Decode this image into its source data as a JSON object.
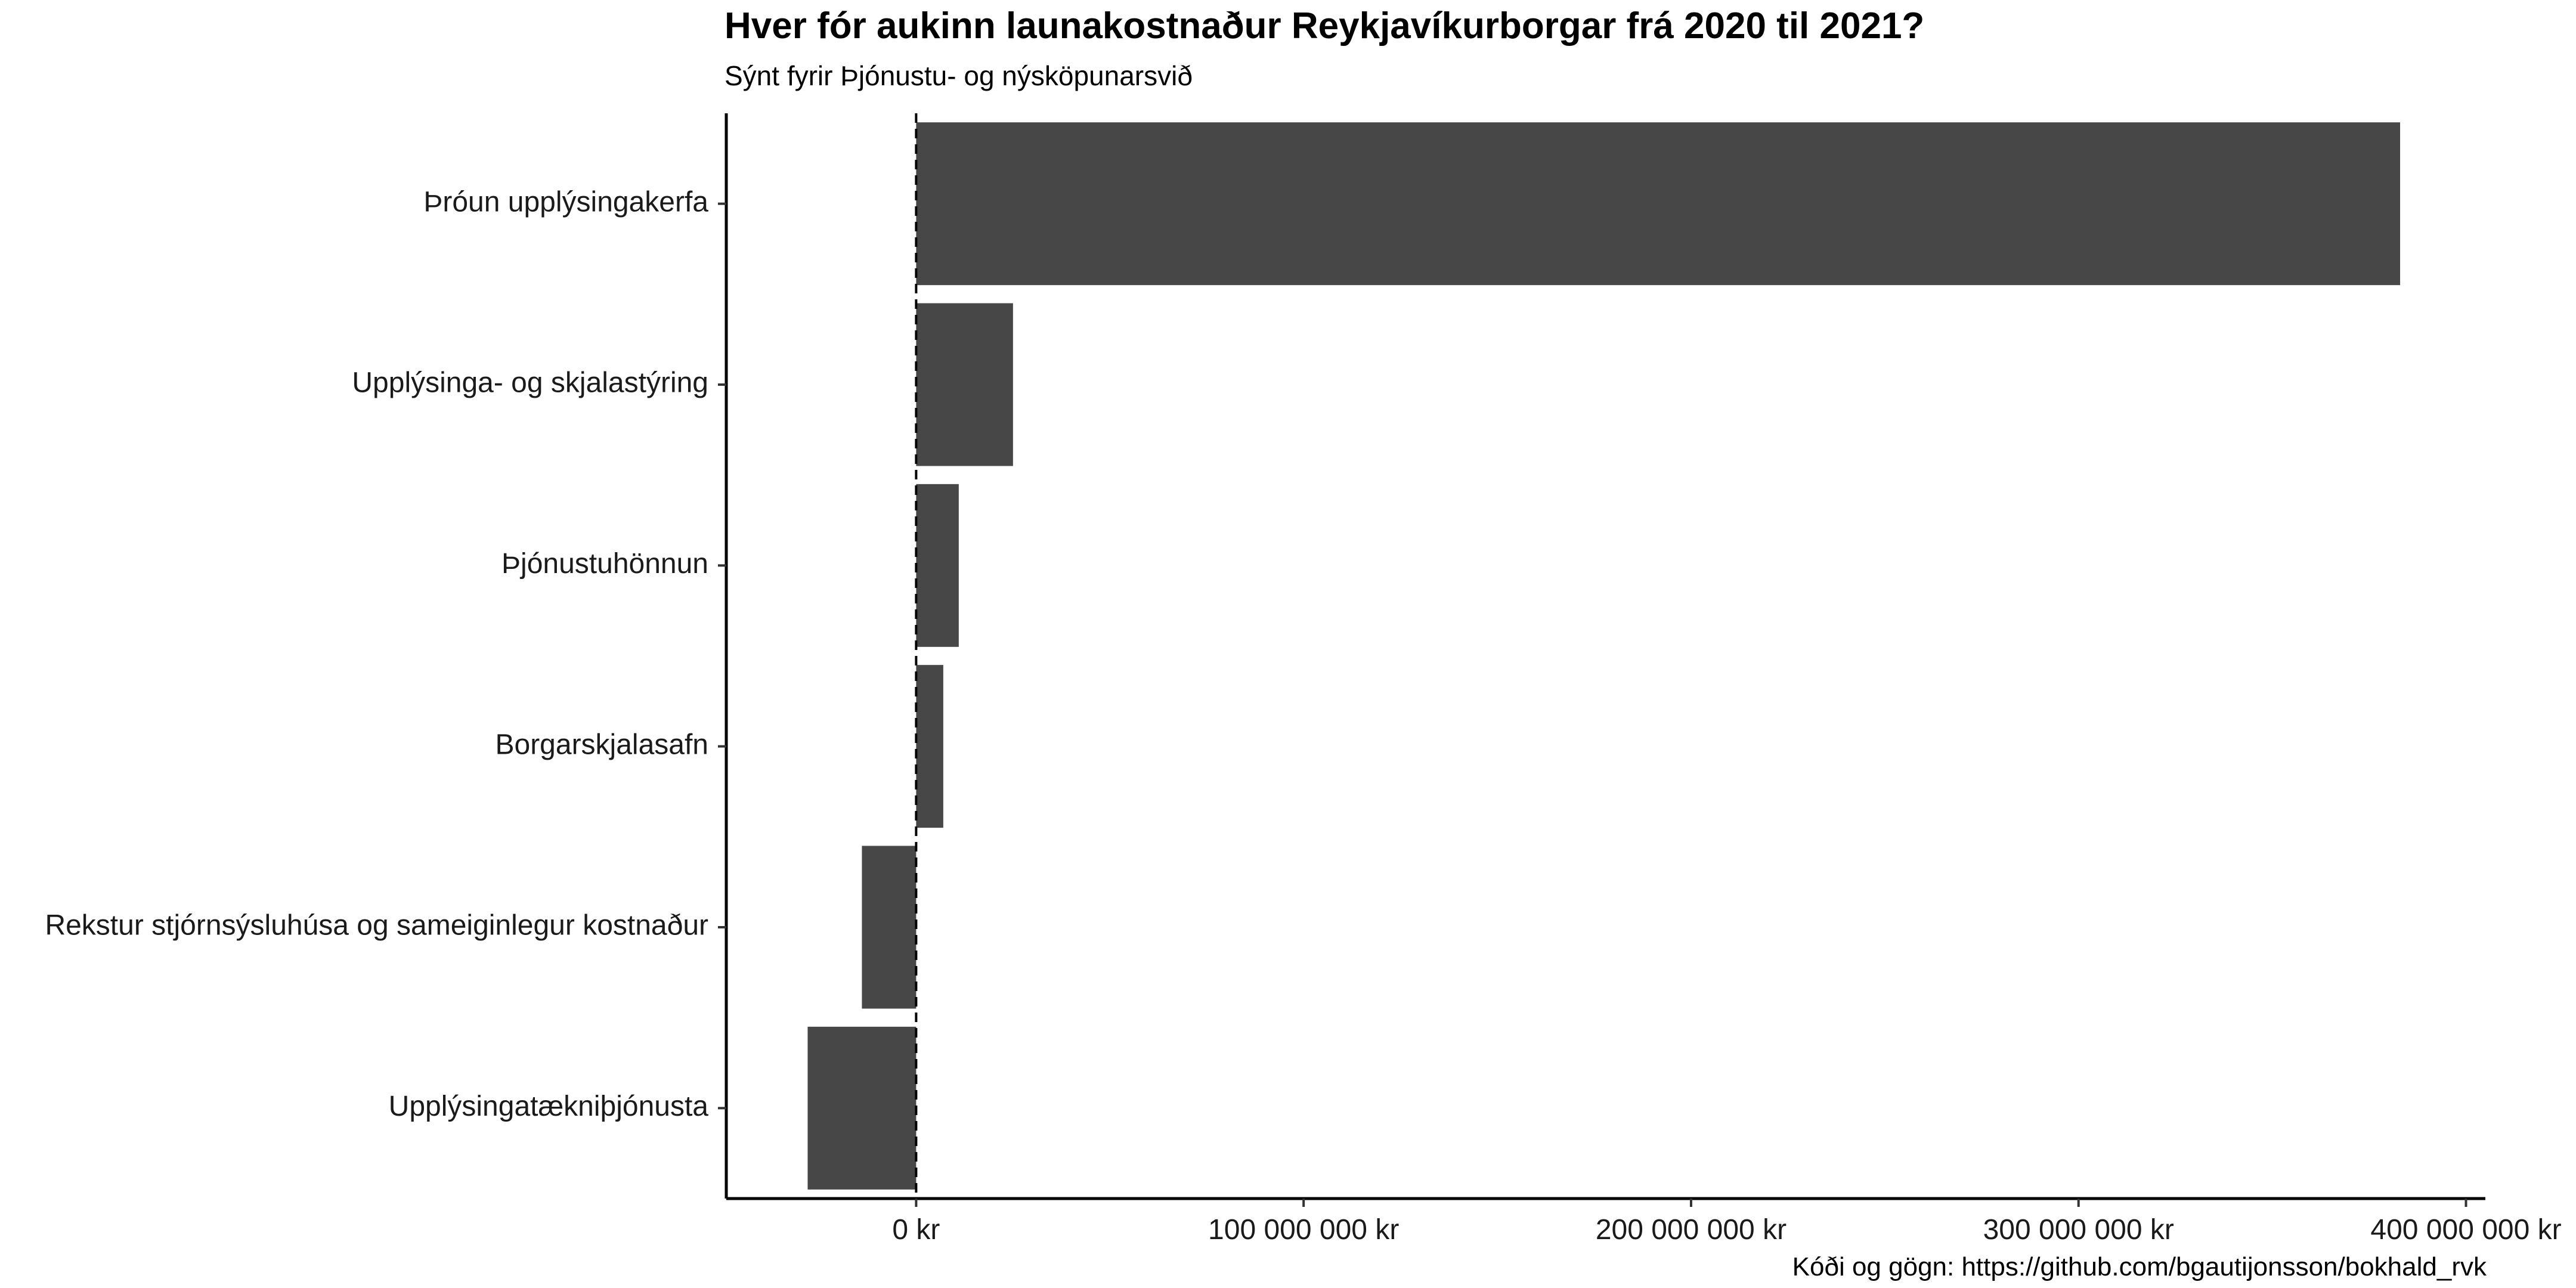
{
  "chart_data": {
    "type": "bar",
    "orientation": "horizontal",
    "title": "Hver fór aukinn launakostnaður Reykjavíkurborgar frá 2020 til 2021?",
    "subtitle": "Sýnt fyrir Þjónustu- og nýsköpunarsvið",
    "caption": "Kóði og gögn: https://github.com/bgautijonsson/bokhald_rvk",
    "xlabel": "",
    "ylabel": "",
    "xlim": [
      -49000000,
      405000000
    ],
    "reference_line": 0,
    "categories": [
      "Þróun upplýsingakerfa",
      "Upplýsinga- og skjalastýring",
      "Þjónustuhönnun",
      "Borgarskjalasafn",
      "Rekstur stjórnsýsluhúsa og sameiginlegur kostnaður",
      "Upplýsingatækniþjónusta"
    ],
    "values": [
      383000000,
      25000000,
      11000000,
      7000000,
      -14000000,
      -28000000
    ],
    "x_ticks": [
      {
        "value": 0,
        "label": "0 kr"
      },
      {
        "value": 100000000,
        "label": "100 000 000 kr"
      },
      {
        "value": 200000000,
        "label": "200 000 000 kr"
      },
      {
        "value": 300000000,
        "label": "300 000 000 kr"
      },
      {
        "value": 400000000,
        "label": "400 000 000 kr"
      }
    ],
    "bar_color": "#474747",
    "grid": false,
    "legend": "none"
  }
}
